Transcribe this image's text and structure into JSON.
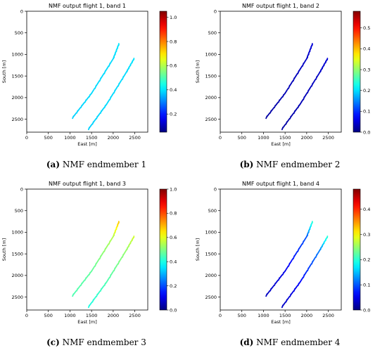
{
  "chart_data": [
    {
      "type": "scatter",
      "title": "NMF output flight 1, band 1",
      "xlabel": "East [m]",
      "ylabel": "South [m]",
      "xlim": [
        0,
        2800
      ],
      "ylim": [
        2800,
        0
      ],
      "xticks": [
        0,
        500,
        1000,
        1500,
        2000,
        2500
      ],
      "yticks": [
        0,
        500,
        1000,
        1500,
        2000,
        2500
      ],
      "colorbar": {
        "min": 0.05,
        "max": 1.05,
        "ticks": [
          0.2,
          0.4,
          0.6,
          0.8,
          1.0
        ]
      },
      "caption_letter": "(a)",
      "caption_text": " NMF endmember 1",
      "series": [
        {
          "x": [
            1050,
            1500,
            2000,
            2130
          ],
          "y": [
            2480,
            1900,
            1100,
            760
          ],
          "values": [
            0.38,
            0.39,
            0.39,
            0.4
          ]
        },
        {
          "x": [
            1420,
            1850,
            2300,
            2480
          ],
          "y": [
            2740,
            2150,
            1420,
            1100
          ],
          "values": [
            0.38,
            0.39,
            0.39,
            0.4
          ]
        }
      ]
    },
    {
      "type": "scatter",
      "title": "NMF output flight 1, band 2",
      "xlabel": "East [m]",
      "ylabel": "South [m]",
      "xlim": [
        0,
        2800
      ],
      "ylim": [
        2800,
        0
      ],
      "xticks": [
        0,
        500,
        1000,
        1500,
        2000,
        2500
      ],
      "yticks": [
        0,
        500,
        1000,
        1500,
        2000,
        2500
      ],
      "colorbar": {
        "min": 0.0,
        "max": 0.58,
        "ticks": [
          0.0,
          0.1,
          0.2,
          0.3,
          0.4,
          0.5
        ]
      },
      "caption_letter": "(b)",
      "caption_text": " NMF endmember 2",
      "series": [
        {
          "x": [
            1050,
            1500,
            2000,
            2130
          ],
          "y": [
            2480,
            1900,
            1100,
            760
          ],
          "values": [
            0.02,
            0.03,
            0.04,
            0.05
          ]
        },
        {
          "x": [
            1420,
            1850,
            2300,
            2480
          ],
          "y": [
            2740,
            2150,
            1420,
            1100
          ],
          "values": [
            0.02,
            0.03,
            0.04,
            0.05
          ]
        }
      ]
    },
    {
      "type": "scatter",
      "title": "NMF output flight 1, band 3",
      "xlabel": "East [m]",
      "ylabel": "South [m]",
      "xlim": [
        0,
        2800
      ],
      "ylim": [
        2800,
        0
      ],
      "xticks": [
        0,
        500,
        1000,
        1500,
        2000,
        2500
      ],
      "yticks": [
        0,
        500,
        1000,
        1500,
        2000,
        2500
      ],
      "colorbar": {
        "min": 0.0,
        "max": 1.0,
        "ticks": [
          0.0,
          0.2,
          0.4,
          0.6,
          0.8,
          1.0
        ]
      },
      "caption_letter": "(c)",
      "caption_text": " NMF endmember 3",
      "series": [
        {
          "x": [
            1050,
            1500,
            2000,
            2130
          ],
          "y": [
            2480,
            1900,
            1100,
            760
          ],
          "values": [
            0.45,
            0.47,
            0.55,
            0.68
          ]
        },
        {
          "x": [
            1420,
            1850,
            2300,
            2480
          ],
          "y": [
            2740,
            2150,
            1420,
            1100
          ],
          "values": [
            0.4,
            0.45,
            0.52,
            0.58
          ]
        }
      ]
    },
    {
      "type": "scatter",
      "title": "NMF output flight 1, band 4",
      "xlabel": "East [m]",
      "ylabel": "South [m]",
      "xlim": [
        0,
        2800
      ],
      "ylim": [
        2800,
        0
      ],
      "xticks": [
        0,
        500,
        1000,
        1500,
        2000,
        2500
      ],
      "yticks": [
        0,
        500,
        1000,
        1500,
        2000,
        2500
      ],
      "colorbar": {
        "min": 0.0,
        "max": 0.48,
        "ticks": [
          0.0,
          0.1,
          0.2,
          0.3,
          0.4
        ]
      },
      "caption_letter": "(d)",
      "caption_text": " NMF endmember 4",
      "series": [
        {
          "x": [
            1050,
            1500,
            2000,
            2130
          ],
          "y": [
            2480,
            1900,
            1100,
            760
          ],
          "values": [
            0.03,
            0.05,
            0.1,
            0.2
          ]
        },
        {
          "x": [
            1420,
            1850,
            2300,
            2480
          ],
          "y": [
            2740,
            2150,
            1420,
            1100
          ],
          "values": [
            0.03,
            0.06,
            0.12,
            0.2
          ]
        }
      ]
    }
  ]
}
